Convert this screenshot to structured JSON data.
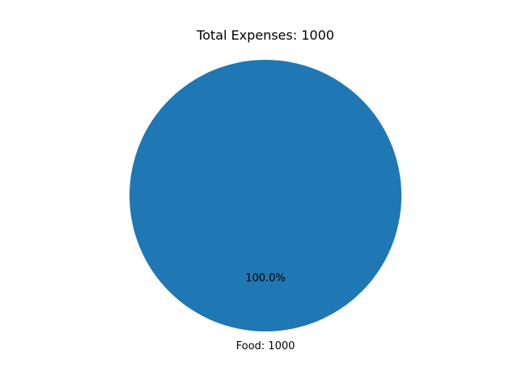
{
  "chart_data": {
    "type": "pie",
    "title": "Total Expenses: 1000",
    "slices": [
      {
        "category": "Food",
        "value": 1000,
        "label": "Food: 1000",
        "percent_label": "100.0%",
        "color": "#1f77b4"
      }
    ],
    "legend": false
  }
}
